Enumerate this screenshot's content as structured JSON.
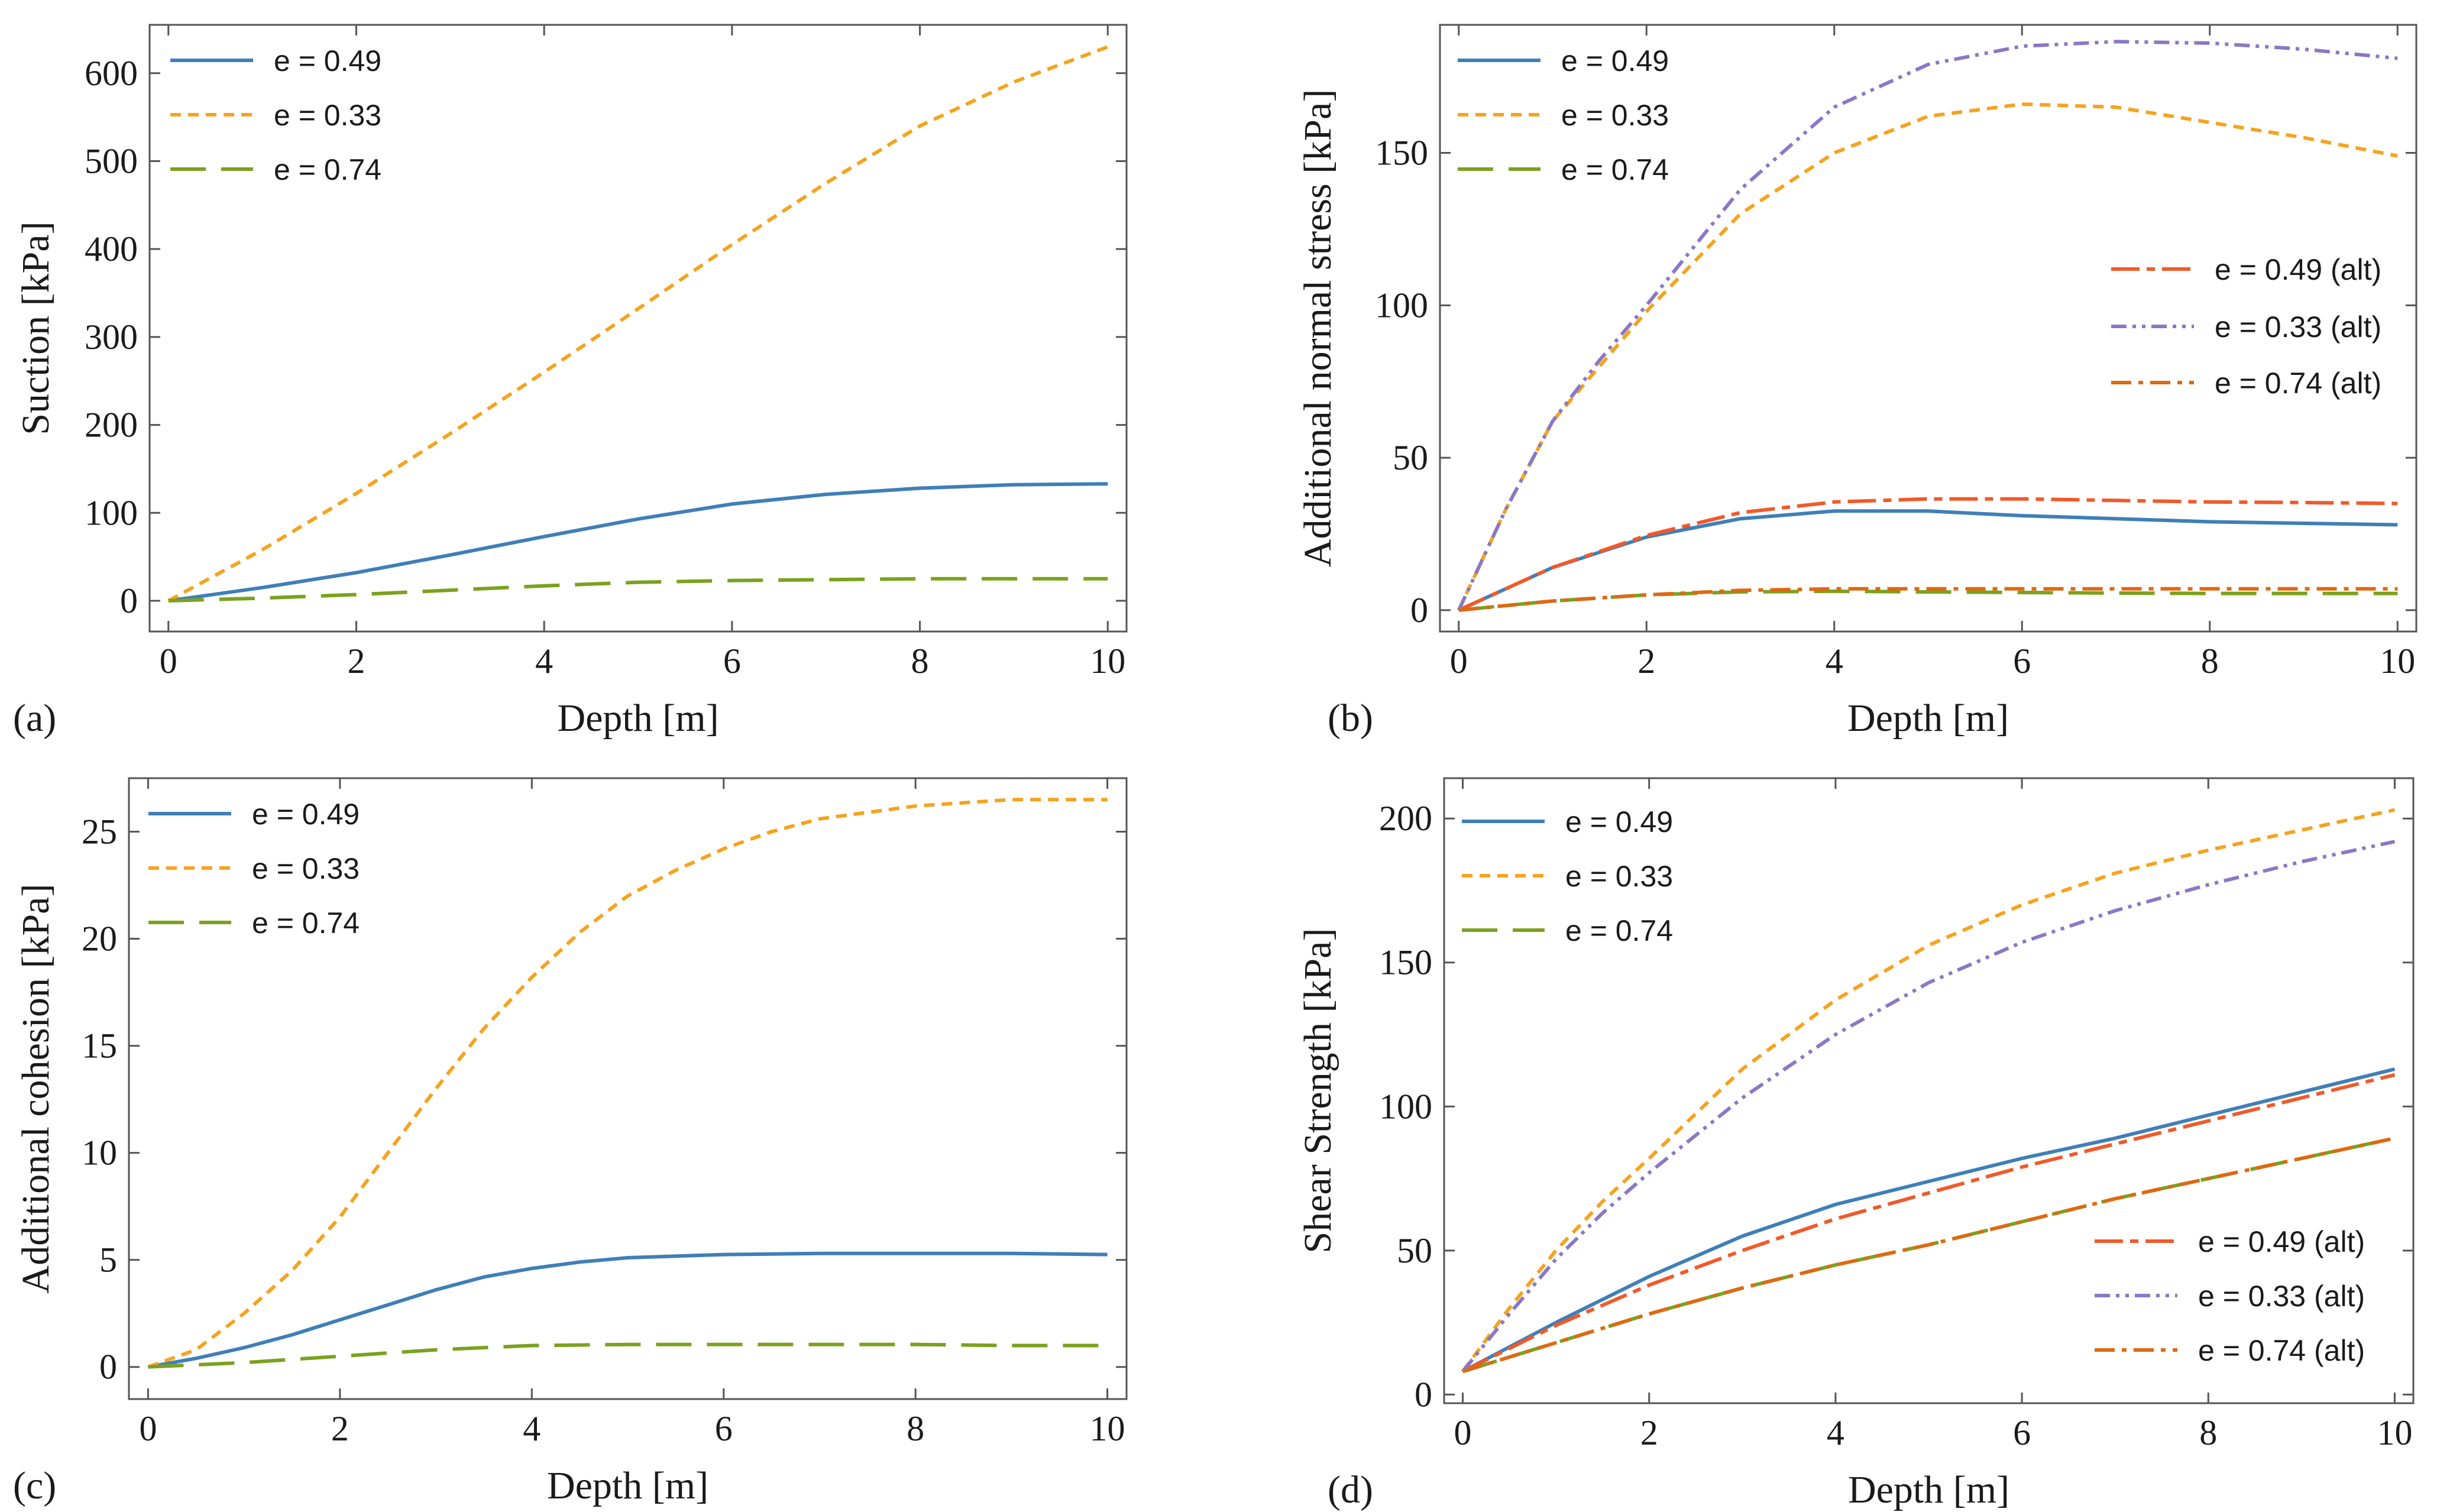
{
  "colors": {
    "blue": "#3f7fb8",
    "orange": "#f5a31f",
    "green": "#7aa21e",
    "red": "#f05a2a",
    "purple": "#8a78c4",
    "darkorange": "#dd6a12"
  },
  "chart_data": [
    {
      "id": "a",
      "type": "line",
      "panel_label": "(a)",
      "xlabel": "Depth [m]",
      "ylabel": "Suction [kPa]",
      "xlim": [
        -0.2,
        10.2
      ],
      "ylim": [
        -35,
        655
      ],
      "xticks": [
        0,
        2,
        4,
        6,
        8,
        10
      ],
      "yticks": [
        0,
        100,
        200,
        300,
        400,
        500,
        600
      ],
      "legend_position": "top-left",
      "series": [
        {
          "name": "e = 0.49",
          "color": "blue",
          "dash": "solid",
          "legend": true,
          "x": [
            0,
            1,
            2,
            3,
            4,
            5,
            6,
            7,
            8,
            9,
            10
          ],
          "y": [
            0,
            15,
            32,
            52,
            73,
            93,
            110,
            121,
            128,
            132,
            133
          ]
        },
        {
          "name": "e = 0.33",
          "color": "orange",
          "dash": "short",
          "legend": true,
          "x": [
            0,
            1,
            2,
            3,
            4,
            5,
            6,
            7,
            8,
            9,
            10
          ],
          "y": [
            0,
            58,
            122,
            190,
            260,
            332,
            405,
            475,
            540,
            590,
            630
          ]
        },
        {
          "name": "e = 0.74",
          "color": "green",
          "dash": "long",
          "legend": true,
          "x": [
            0,
            1,
            2,
            3,
            4,
            5,
            6,
            7,
            8,
            9,
            10
          ],
          "y": [
            0,
            3,
            7,
            12,
            17,
            21,
            23,
            24,
            25,
            25,
            25
          ]
        }
      ]
    },
    {
      "id": "b",
      "type": "line",
      "panel_label": "(b)",
      "xlabel": "Depth [m]",
      "ylabel": "Additional normal stress [kPa]",
      "xlim": [
        -0.2,
        10.2
      ],
      "ylim": [
        -7,
        192
      ],
      "xticks": [
        0,
        2,
        4,
        6,
        8,
        10
      ],
      "yticks": [
        0,
        50,
        100,
        150
      ],
      "legend_position": "top-left and center-right",
      "series": [
        {
          "name": "e = 0.49",
          "color": "blue",
          "dash": "solid",
          "legend": true,
          "x": [
            0,
            0.5,
            1,
            2,
            3,
            4,
            5,
            6,
            7,
            8,
            9,
            10
          ],
          "y": [
            0,
            7,
            14,
            24,
            30,
            32.5,
            32.5,
            31,
            30,
            29,
            28.5,
            28
          ]
        },
        {
          "name": "e = 0.33",
          "color": "orange",
          "dash": "short",
          "legend": true,
          "x": [
            0,
            0.5,
            1,
            1.5,
            2,
            3,
            4,
            5,
            6,
            7,
            8,
            9,
            10
          ],
          "y": [
            0,
            33,
            62,
            80,
            98,
            130,
            150,
            162,
            166,
            165,
            160,
            155,
            149
          ]
        },
        {
          "name": "e = 0.74",
          "color": "green",
          "dash": "long",
          "legend": true,
          "x": [
            0,
            1,
            2,
            3,
            4,
            5,
            6,
            7,
            8,
            9,
            10
          ],
          "y": [
            0,
            3,
            5,
            6,
            6.2,
            6,
            5.8,
            5.6,
            5.5,
            5.5,
            5.5
          ]
        },
        {
          "name": "e = 0.49 (alt)",
          "color": "red",
          "dash": "longdash",
          "legend": true,
          "x": [
            0,
            0.5,
            1,
            2,
            3,
            4,
            5,
            6,
            7,
            8,
            9,
            10
          ],
          "y": [
            0,
            7,
            14,
            24.5,
            32,
            35.5,
            36.5,
            36.5,
            36,
            35.5,
            35.3,
            35
          ]
        },
        {
          "name": "e = 0.33 (alt)",
          "color": "purple",
          "dash": "dashdotdot",
          "legend": true,
          "x": [
            0,
            0.5,
            1,
            1.5,
            2,
            3,
            4,
            5,
            6,
            7,
            8,
            9,
            10
          ],
          "y": [
            0,
            33,
            62,
            82,
            100,
            138,
            165,
            179,
            185,
            186.5,
            186,
            184,
            181
          ]
        },
        {
          "name": "e = 0.74 (alt)",
          "color": "darkorange",
          "dash": "dashdot",
          "legend": true,
          "x": [
            0,
            1,
            2,
            3,
            4,
            5,
            6,
            7,
            8,
            9,
            10
          ],
          "y": [
            0,
            3,
            5,
            6.5,
            7,
            7,
            7,
            7,
            7,
            7,
            7
          ]
        }
      ]
    },
    {
      "id": "c",
      "type": "line",
      "panel_label": "(c)",
      "xlabel": "Depth [m]",
      "ylabel": "Additional cohesion [kPa]",
      "xlim": [
        -0.2,
        10.2
      ],
      "ylim": [
        -1.5,
        27.5
      ],
      "xticks": [
        0,
        2,
        4,
        6,
        8,
        10
      ],
      "yticks": [
        0,
        5,
        10,
        15,
        20,
        25
      ],
      "legend_position": "top-left",
      "series": [
        {
          "name": "e = 0.49",
          "color": "blue",
          "dash": "solid",
          "legend": true,
          "x": [
            0,
            0.5,
            1,
            1.5,
            2,
            2.5,
            3,
            3.5,
            4,
            4.5,
            5,
            6,
            7,
            8,
            9,
            10
          ],
          "y": [
            0,
            0.4,
            0.9,
            1.5,
            2.2,
            2.9,
            3.6,
            4.2,
            4.6,
            4.9,
            5.1,
            5.25,
            5.3,
            5.3,
            5.3,
            5.25
          ]
        },
        {
          "name": "e = 0.33",
          "color": "orange",
          "dash": "short",
          "legend": true,
          "x": [
            0,
            0.5,
            1,
            1.5,
            2,
            2.5,
            3,
            3.5,
            4,
            4.5,
            5,
            5.5,
            6,
            6.5,
            7,
            8,
            9,
            10
          ],
          "y": [
            0,
            0.8,
            2.5,
            4.5,
            7,
            10,
            13,
            15.8,
            18.2,
            20.3,
            22,
            23.2,
            24.2,
            25,
            25.6,
            26.2,
            26.5,
            26.5
          ]
        },
        {
          "name": "e = 0.74",
          "color": "green",
          "dash": "long",
          "legend": true,
          "x": [
            0,
            1,
            2,
            3,
            4,
            5,
            6,
            7,
            8,
            9,
            10
          ],
          "y": [
            0,
            0.2,
            0.5,
            0.8,
            1.0,
            1.05,
            1.05,
            1.05,
            1.05,
            1.0,
            1.0
          ]
        }
      ]
    },
    {
      "id": "d",
      "type": "line",
      "panel_label": "(d)",
      "xlabel": "Depth [m]",
      "ylabel": "Shear Strength [kPa]",
      "xlim": [
        -0.2,
        10.2
      ],
      "ylim": [
        -3,
        214
      ],
      "xticks": [
        0,
        2,
        4,
        6,
        8,
        10
      ],
      "yticks": [
        0,
        50,
        100,
        150,
        200
      ],
      "legend_position": "top-left and bottom-right",
      "series": [
        {
          "name": "e = 0.49",
          "color": "blue",
          "dash": "solid",
          "legend": true,
          "x": [
            0,
            1,
            2,
            3,
            4,
            5,
            6,
            7,
            8,
            9,
            10
          ],
          "y": [
            8,
            25,
            41,
            55,
            66,
            74,
            82,
            89,
            97,
            105,
            113
          ]
        },
        {
          "name": "e = 0.33",
          "color": "orange",
          "dash": "short",
          "legend": true,
          "x": [
            0,
            0.5,
            1,
            1.5,
            2,
            3,
            4,
            5,
            6,
            7,
            8,
            9,
            10
          ],
          "y": [
            8,
            30,
            50,
            67,
            82,
            113,
            137,
            156,
            170,
            181,
            189,
            196,
            203
          ]
        },
        {
          "name": "e = 0.74",
          "color": "green",
          "dash": "long",
          "legend": true,
          "x": [
            0,
            1,
            2,
            3,
            4,
            5,
            6,
            7,
            8,
            9,
            10
          ],
          "y": [
            8,
            18,
            28,
            37,
            45,
            52,
            60,
            68,
            75,
            82,
            89
          ]
        },
        {
          "name": "e = 0.49 (alt)",
          "color": "red",
          "dash": "longdash",
          "legend": true,
          "x": [
            0,
            1,
            2,
            3,
            4,
            5,
            6,
            7,
            8,
            9,
            10
          ],
          "y": [
            8,
            24,
            38,
            50,
            61,
            70,
            79,
            87,
            95,
            103,
            111
          ]
        },
        {
          "name": "e = 0.33 (alt)",
          "color": "purple",
          "dash": "dashdotdot",
          "legend": true,
          "x": [
            0,
            0.5,
            1,
            1.5,
            2,
            3,
            4,
            5,
            6,
            7,
            8,
            9,
            10
          ],
          "y": [
            8,
            28,
            47,
            63,
            77,
            103,
            125,
            143,
            157,
            168,
            177,
            185,
            192
          ]
        },
        {
          "name": "e = 0.74 (alt)",
          "color": "darkorange",
          "dash": "dashdot",
          "legend": true,
          "x": [
            0,
            1,
            2,
            3,
            4,
            5,
            6,
            7,
            8,
            9,
            10
          ],
          "y": [
            8,
            18,
            28,
            37,
            45,
            52,
            60,
            68,
            75,
            82,
            89
          ]
        }
      ]
    }
  ]
}
